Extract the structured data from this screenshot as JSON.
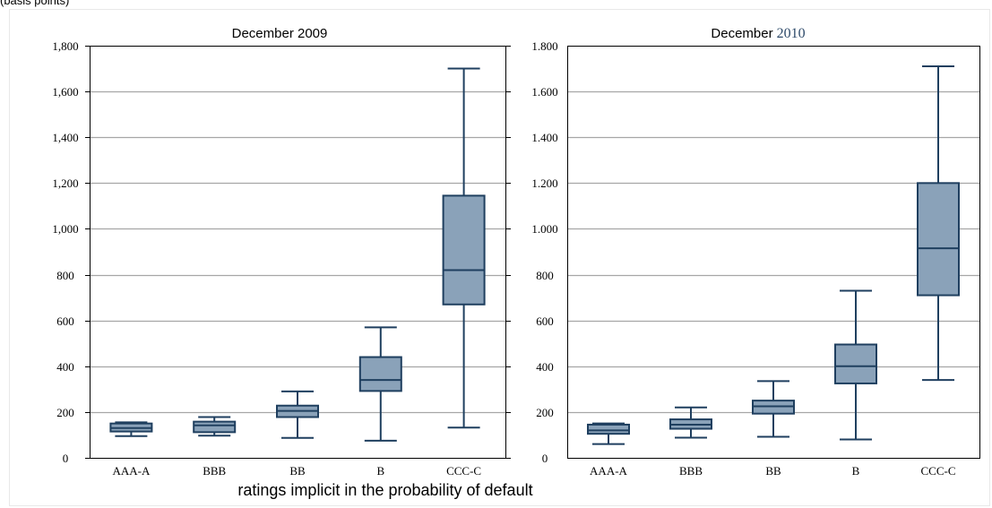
{
  "header_note": "(basis points)",
  "xlabel": "ratings implicit in the probability of default",
  "colors": {
    "box_fill": "#8AA2B9",
    "box_stroke": "#1F3F5F",
    "grid": "#A6A6A6",
    "axis": "#000000"
  },
  "chart_data": [
    {
      "type": "box",
      "title": "December 2009",
      "categories": [
        "AAA-A",
        "BBB",
        "BB",
        "B",
        "CCC-C"
      ],
      "ylim": [
        0,
        1800
      ],
      "yticks": [
        0,
        200,
        400,
        600,
        800,
        1000,
        1200,
        1400,
        1600,
        1800
      ],
      "ytick_labels": [
        "0",
        "200",
        "400",
        "600",
        "800",
        "1,000",
        "1,200",
        "1,400",
        "1,600",
        "1,800"
      ],
      "grid": true,
      "boxes": [
        {
          "min": 95,
          "q1": 115,
          "median": 130,
          "q3": 150,
          "max": 155
        },
        {
          "min": 97,
          "q1": 112,
          "median": 142,
          "q3": 158,
          "max": 178
        },
        {
          "min": 87,
          "q1": 178,
          "median": 205,
          "q3": 228,
          "max": 290
        },
        {
          "min": 75,
          "q1": 292,
          "median": 340,
          "q3": 440,
          "max": 570
        },
        {
          "min": 132,
          "q1": 670,
          "median": 820,
          "q3": 1145,
          "max": 1700
        }
      ]
    },
    {
      "type": "box",
      "title_main": "December",
      "title_year": "2010",
      "categories": [
        "AAA-A",
        "BBB",
        "BB",
        "B",
        "CCC-C"
      ],
      "ylim": [
        0,
        1800
      ],
      "yticks": [
        0,
        200,
        400,
        600,
        800,
        1000,
        1200,
        1400,
        1600,
        1800
      ],
      "ytick_labels": [
        "0",
        "200",
        "400",
        "600",
        "800",
        "1.000",
        "1.200",
        "1.400",
        "1.600",
        "1.800"
      ],
      "grid": true,
      "boxes": [
        {
          "min": 60,
          "q1": 105,
          "median": 120,
          "q3": 145,
          "max": 150
        },
        {
          "min": 88,
          "q1": 127,
          "median": 145,
          "q3": 168,
          "max": 220
        },
        {
          "min": 92,
          "q1": 193,
          "median": 225,
          "q3": 250,
          "max": 335
        },
        {
          "min": 80,
          "q1": 325,
          "median": 400,
          "q3": 495,
          "max": 730
        },
        {
          "min": 340,
          "q1": 710,
          "median": 915,
          "q3": 1200,
          "max": 1710
        }
      ]
    }
  ]
}
